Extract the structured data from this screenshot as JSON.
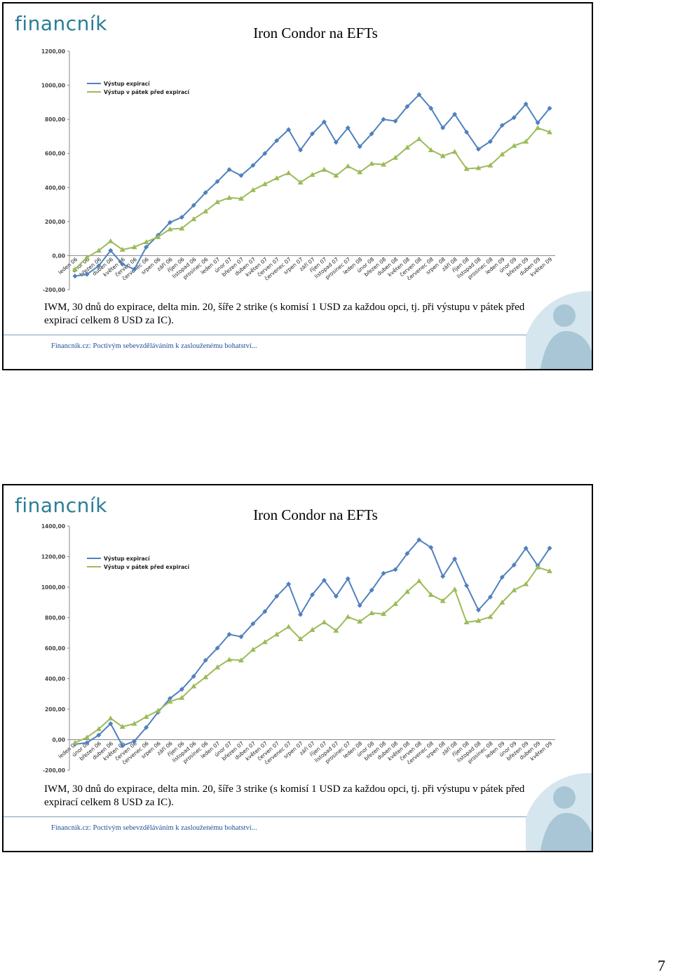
{
  "slides": [
    {
      "logo": "financník",
      "caption": "IWM, 30 dnů do expirace, delta min. 20, šíře 2 strike (s komisí 1 USD za každou opci, tj. při výstupu v pátek před expirací celkem 8 USD za IC).",
      "footer": "Financnik.cz: Poctivým sebevzděláváním k zaslouženému bohatství..."
    },
    {
      "logo": "financník",
      "caption": "IWM, 30 dnů do expirace, delta min. 20, šíře 3 strike (s komisí 1 USD za každou opci, tj. při výstupu v pátek před expirací celkem 8 USD za IC).",
      "footer": "Financnik.cz: Poctivým sebevzděláváním k zaslouženému bohatství..."
    }
  ],
  "page_number": "7",
  "chart_data": [
    {
      "type": "line",
      "title": "Iron Condor na EFTs",
      "categories": [
        "leden 06",
        "únor 06",
        "březen 06",
        "duben 06",
        "květen 06",
        "červen 06",
        "červenec 06",
        "srpen 06",
        "září 06",
        "říjen 06",
        "listopad 06",
        "prosinec 06",
        "leden 07",
        "únor 07",
        "březen 07",
        "duben 07",
        "květen 07",
        "červen 07",
        "červenec 07",
        "srpen 07",
        "září 07",
        "říjen 07",
        "listopad 07",
        "prosinec 07",
        "leden 08",
        "únor 08",
        "březen 08",
        "duben 08",
        "květen 08",
        "červen 08",
        "červenec 08",
        "srpen 08",
        "září 08",
        "říjen 08",
        "listopad 08",
        "prosinec 08",
        "leden 09",
        "únor 09",
        "březen 09",
        "duben 09",
        "květen 09"
      ],
      "series": [
        {
          "name": "Výstup expirací",
          "color": "#4f81bd",
          "values": [
            -120,
            -110,
            -60,
            30,
            -50,
            -80,
            50,
            120,
            195,
            225,
            295,
            370,
            435,
            505,
            470,
            530,
            600,
            675,
            740,
            620,
            715,
            785,
            665,
            750,
            640,
            715,
            800,
            790,
            875,
            945,
            865,
            750,
            830,
            725,
            625,
            670,
            765,
            810,
            890,
            780,
            865
          ]
        },
        {
          "name": "Výstup v pátek před expirací",
          "color": "#9bbb59",
          "values": [
            -80,
            -10,
            30,
            85,
            35,
            50,
            80,
            110,
            155,
            160,
            215,
            260,
            315,
            340,
            335,
            385,
            420,
            455,
            485,
            430,
            475,
            505,
            470,
            525,
            490,
            540,
            535,
            575,
            635,
            685,
            620,
            585,
            610,
            510,
            515,
            530,
            595,
            645,
            670,
            750,
            725
          ]
        }
      ],
      "ylim": [
        -200,
        1200
      ],
      "yticks": [
        {
          "value": -200,
          "label": "-200,00"
        },
        {
          "value": 0,
          "label": "0,00"
        },
        {
          "value": 200,
          "label": "200,00"
        },
        {
          "value": 400,
          "label": "400,00"
        },
        {
          "value": 600,
          "label": "600,00"
        },
        {
          "value": 800,
          "label": "800,00"
        },
        {
          "value": 1000,
          "label": "1000,00"
        },
        {
          "value": 1200,
          "label": "1200,00"
        }
      ],
      "grid": false,
      "legend": "upper-left"
    },
    {
      "type": "line",
      "title": "Iron Condor na EFTs",
      "categories": [
        "leden 06",
        "únor 06",
        "březen 06",
        "duben 06",
        "květen 06",
        "červen 06",
        "červenec 06",
        "srpen 06",
        "září 06",
        "říjen 06",
        "listopad 06",
        "prosinec 06",
        "leden 07",
        "únor 07",
        "březen 07",
        "duben 07",
        "květen 07",
        "červen 07",
        "červenec 07",
        "srpen 07",
        "září 07",
        "říjen 07",
        "listopad 07",
        "prosinec 07",
        "leden 08",
        "únor 08",
        "březen 08",
        "duben 08",
        "květen 08",
        "červen 08",
        "červenec 08",
        "srpen 08",
        "září 08",
        "říjen 08",
        "listopad 08",
        "prosinec 08",
        "leden 09",
        "únor 09",
        "březen 09",
        "duben 09",
        "květen 09"
      ],
      "series": [
        {
          "name": "Výstup expirací",
          "color": "#4f81bd",
          "values": [
            -30,
            -20,
            30,
            105,
            -40,
            -10,
            80,
            180,
            270,
            330,
            415,
            520,
            600,
            690,
            675,
            760,
            840,
            940,
            1020,
            820,
            950,
            1045,
            940,
            1055,
            880,
            980,
            1090,
            1115,
            1220,
            1310,
            1260,
            1070,
            1185,
            1010,
            850,
            935,
            1065,
            1145,
            1255,
            1140,
            1255
          ]
        },
        {
          "name": "Výstup v pátek před expirací",
          "color": "#9bbb59",
          "values": [
            -20,
            15,
            70,
            140,
            85,
            105,
            150,
            190,
            250,
            275,
            350,
            410,
            475,
            525,
            520,
            590,
            640,
            690,
            740,
            660,
            720,
            770,
            715,
            805,
            775,
            830,
            825,
            890,
            970,
            1040,
            950,
            910,
            985,
            770,
            780,
            805,
            900,
            980,
            1020,
            1130,
            1105
          ]
        }
      ],
      "ylim": [
        -200,
        1400
      ],
      "yticks": [
        {
          "value": -200,
          "label": "-200,00"
        },
        {
          "value": 0,
          "label": "0,00"
        },
        {
          "value": 200,
          "label": "200,00"
        },
        {
          "value": 400,
          "label": "400,00"
        },
        {
          "value": 600,
          "label": "600,00"
        },
        {
          "value": 800,
          "label": "800,00"
        },
        {
          "value": 1000,
          "label": "1000,00"
        },
        {
          "value": 1200,
          "label": "1200,00"
        },
        {
          "value": 1400,
          "label": "1400,00"
        }
      ],
      "grid": false,
      "legend": "upper-left"
    }
  ]
}
